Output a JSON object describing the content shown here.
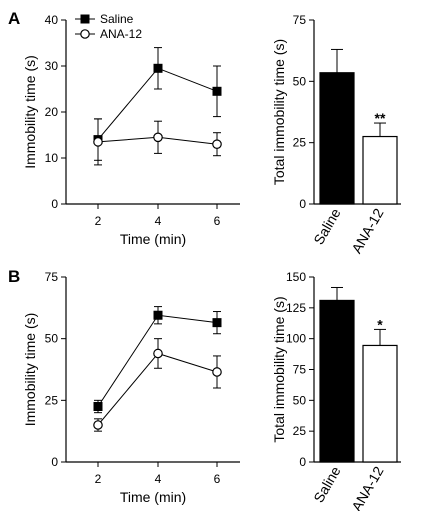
{
  "panels": [
    {
      "label": "A",
      "line": {
        "type": "line",
        "xlabel": "Time (min)",
        "ylabel": "Immobility time (s)",
        "xticks": [
          2,
          4,
          6
        ],
        "yticks": [
          0,
          10,
          20,
          30,
          40
        ],
        "ylim": [
          0,
          40
        ],
        "legend": "top-left",
        "series": [
          {
            "name": "Saline",
            "marker": "filled-square",
            "x": [
              2,
              4,
              6
            ],
            "y": [
              14,
              29.5,
              24.5
            ],
            "err": [
              4.5,
              4.5,
              5.5
            ]
          },
          {
            "name": "ANA-12",
            "marker": "open-circle",
            "x": [
              2,
              4,
              6
            ],
            "y": [
              13.5,
              14.5,
              13
            ],
            "err": [
              5,
              3.5,
              2.5
            ]
          }
        ]
      },
      "bar": {
        "type": "bar",
        "ylabel": "Total immobility time (s)",
        "categories": [
          "Saline",
          "ANA-12"
        ],
        "values": [
          53.5,
          27.5
        ],
        "err": [
          9.5,
          5.5
        ],
        "colors": [
          "#000000",
          "#ffffff"
        ],
        "yticks": [
          0,
          25,
          50,
          75
        ],
        "ylim": [
          0,
          75
        ],
        "annotation": "**"
      }
    },
    {
      "label": "B",
      "line": {
        "type": "line",
        "xlabel": "Time (min)",
        "ylabel": "Immobility time (s)",
        "xticks": [
          2,
          4,
          6
        ],
        "yticks": [
          0,
          25,
          50,
          75
        ],
        "ylim": [
          0,
          75
        ],
        "series": [
          {
            "name": "Saline",
            "marker": "filled-square",
            "x": [
              2,
              4,
              6
            ],
            "y": [
              22.5,
              59.5,
              56.5
            ],
            "err": [
              2.5,
              3.5,
              4.5
            ]
          },
          {
            "name": "ANA-12",
            "marker": "open-circle",
            "x": [
              2,
              4,
              6
            ],
            "y": [
              15,
              44,
              36.5
            ],
            "err": [
              2.5,
              6,
              6.5
            ]
          }
        ]
      },
      "bar": {
        "type": "bar",
        "ylabel": "Total immobility time (s)",
        "categories": [
          "Saline",
          "ANA-12"
        ],
        "values": [
          131,
          94.5
        ],
        "err": [
          10.5,
          13
        ],
        "colors": [
          "#000000",
          "#ffffff"
        ],
        "yticks": [
          0,
          25,
          50,
          75,
          100,
          125,
          150
        ],
        "ylim": [
          0,
          150
        ],
        "annotation": "*"
      }
    }
  ]
}
